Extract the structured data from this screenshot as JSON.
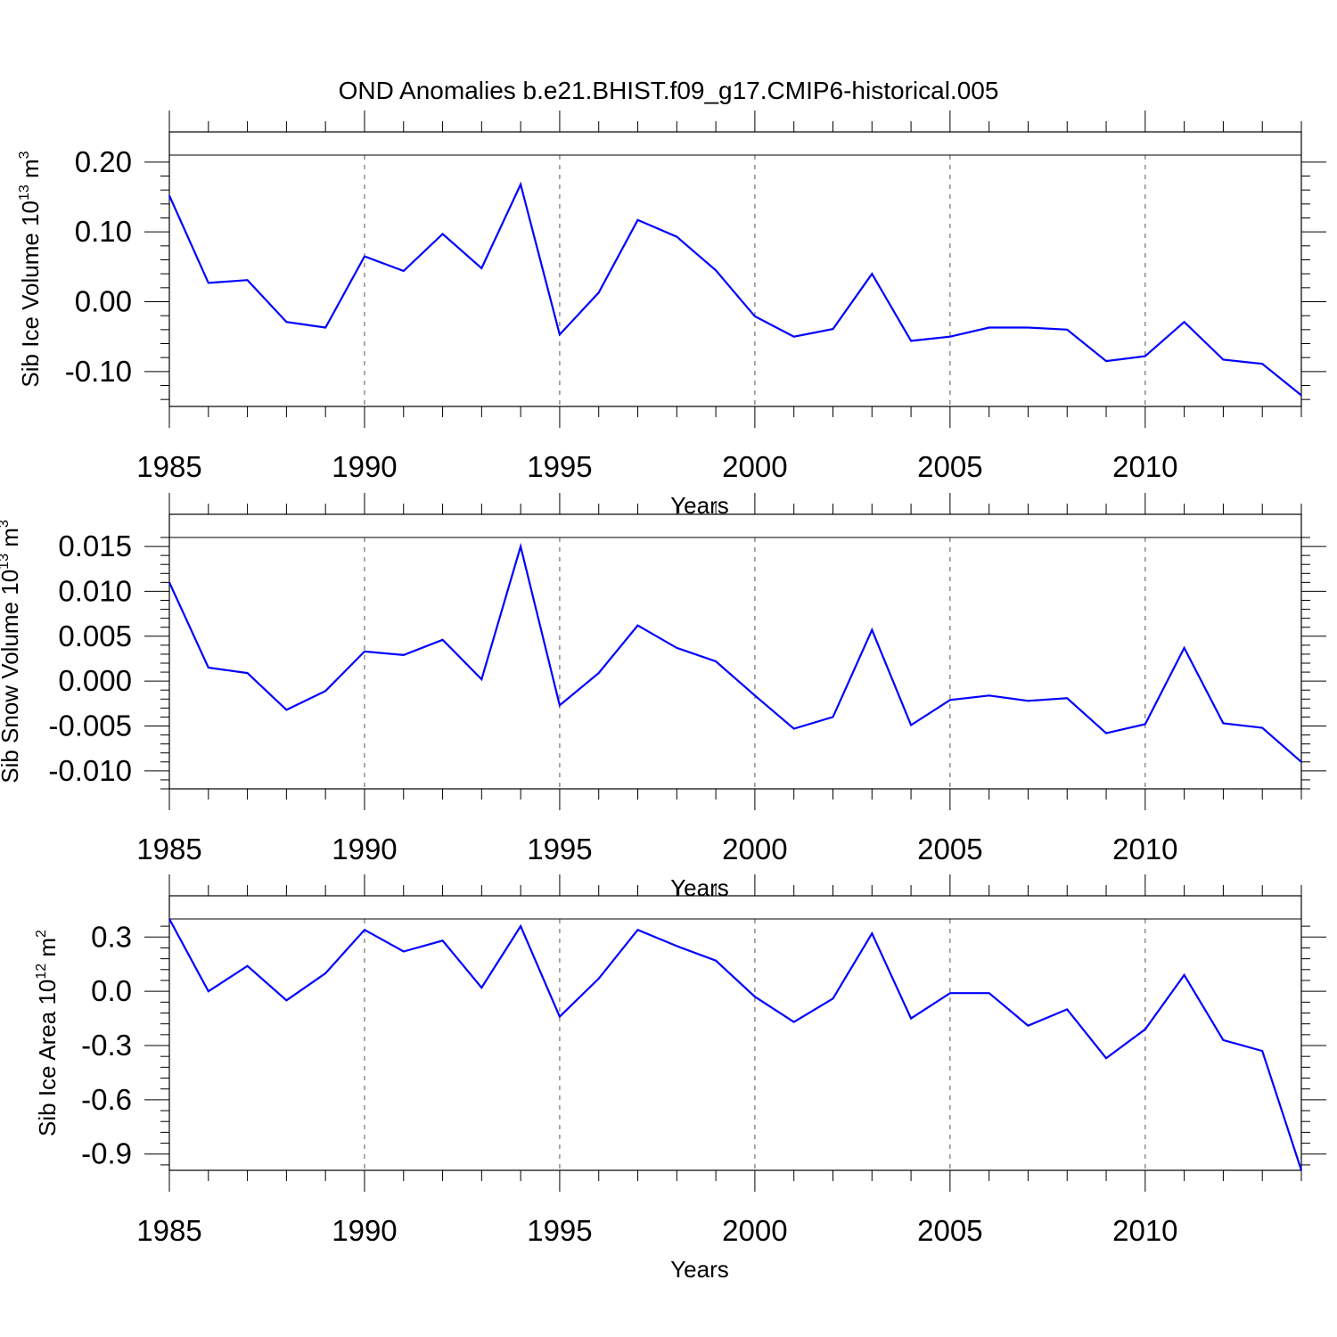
{
  "figure_title": "OND Anomalies b.e21.BHIST.f09_g17.CMIP6-historical.005",
  "series_color": "#0000ff",
  "chart_data": [
    {
      "type": "line",
      "title": "",
      "xlabel": "Years",
      "ylabel": {
        "base": "Sib Ice Volume 10",
        "exp": "13",
        "unit": " m",
        "unit_exp": "3"
      },
      "xlim": [
        1985,
        2014
      ],
      "ylim": [
        -0.15,
        0.21
      ],
      "x_ticks": [
        "1985",
        "1990",
        "1995",
        "2000",
        "2005",
        "2010"
      ],
      "y_ticks": [
        "0.20",
        "0.10",
        "0.00",
        "-0.10"
      ],
      "y_tick_values": [
        0.2,
        0.1,
        0.0,
        -0.1
      ],
      "grid": "vertical dashed at major x ticks",
      "series": [
        {
          "name": "Sib Ice Volume",
          "x": [
            1985,
            1986,
            1987,
            1988,
            1989,
            1990,
            1991,
            1992,
            1993,
            1994,
            1995,
            1996,
            1997,
            1998,
            1999,
            2000,
            2001,
            2002,
            2003,
            2004,
            2005,
            2006,
            2007,
            2008,
            2009,
            2010,
            2011,
            2012,
            2013,
            2014
          ],
          "values": [
            0.152,
            0.027,
            0.031,
            -0.029,
            -0.037,
            0.065,
            0.044,
            0.097,
            0.048,
            0.168,
            -0.047,
            0.013,
            0.117,
            0.093,
            0.045,
            -0.021,
            -0.05,
            -0.039,
            0.04,
            -0.056,
            -0.05,
            -0.037,
            -0.037,
            -0.04,
            -0.085,
            -0.078,
            -0.029,
            -0.083,
            -0.089,
            -0.134
          ]
        }
      ]
    },
    {
      "type": "line",
      "title": "",
      "xlabel": "Years",
      "ylabel": {
        "base": "Sib Snow Volume 10",
        "exp": "13",
        "unit": " m",
        "unit_exp": "3"
      },
      "xlim": [
        1985,
        2014
      ],
      "ylim": [
        -0.012,
        0.016
      ],
      "x_ticks": [
        "1985",
        "1990",
        "1995",
        "2000",
        "2005",
        "2010"
      ],
      "y_ticks": [
        "0.015",
        "0.010",
        "0.005",
        "0.000",
        "-0.005",
        "-0.010"
      ],
      "y_tick_values": [
        0.015,
        0.01,
        0.005,
        0.0,
        -0.005,
        -0.01
      ],
      "grid": "vertical dashed at major x ticks",
      "series": [
        {
          "name": "Sib Snow Volume",
          "x": [
            1985,
            1986,
            1987,
            1988,
            1989,
            1990,
            1991,
            1992,
            1993,
            1994,
            1995,
            1996,
            1997,
            1998,
            1999,
            2000,
            2001,
            2002,
            2003,
            2004,
            2005,
            2006,
            2007,
            2008,
            2009,
            2010,
            2011,
            2012,
            2013,
            2014
          ],
          "values": [
            0.011,
            0.0015,
            0.0009,
            -0.0032,
            -0.0011,
            0.0033,
            0.0029,
            0.0046,
            0.0002,
            0.015,
            -0.0027,
            0.0009,
            0.0062,
            0.0037,
            0.0022,
            -0.0016,
            -0.0053,
            -0.004,
            0.0057,
            -0.0049,
            -0.0021,
            -0.0016,
            -0.0022,
            -0.0019,
            -0.0058,
            -0.0048,
            0.0037,
            -0.0047,
            -0.0052,
            -0.009
          ]
        }
      ]
    },
    {
      "type": "line",
      "title": "",
      "xlabel": "Years",
      "ylabel": {
        "base": "Sib Ice Area 10",
        "exp": "12",
        "unit": " m",
        "unit_exp": "2"
      },
      "xlim": [
        1985,
        2014
      ],
      "ylim": [
        -0.99,
        0.4
      ],
      "x_ticks": [
        "1985",
        "1990",
        "1995",
        "2000",
        "2005",
        "2010"
      ],
      "y_ticks": [
        "0.3",
        "0.0",
        "-0.3",
        "-0.6",
        "-0.9"
      ],
      "y_tick_values": [
        0.3,
        0.0,
        -0.3,
        -0.6,
        -0.9
      ],
      "grid": "vertical dashed at major x ticks",
      "series": [
        {
          "name": "Sib Ice Area",
          "x": [
            1985,
            1986,
            1987,
            1988,
            1989,
            1990,
            1991,
            1992,
            1993,
            1994,
            1995,
            1996,
            1997,
            1998,
            1999,
            2000,
            2001,
            2002,
            2003,
            2004,
            2005,
            2006,
            2007,
            2008,
            2009,
            2010,
            2011,
            2012,
            2013,
            2014
          ],
          "values": [
            0.4,
            0.0,
            0.14,
            -0.05,
            0.1,
            0.34,
            0.22,
            0.28,
            0.02,
            0.36,
            -0.14,
            0.07,
            0.34,
            0.25,
            0.17,
            -0.03,
            -0.17,
            -0.04,
            0.32,
            -0.15,
            -0.01,
            -0.01,
            -0.19,
            -0.1,
            -0.37,
            -0.21,
            0.09,
            -0.27,
            -0.33,
            -0.99
          ]
        }
      ]
    }
  ]
}
